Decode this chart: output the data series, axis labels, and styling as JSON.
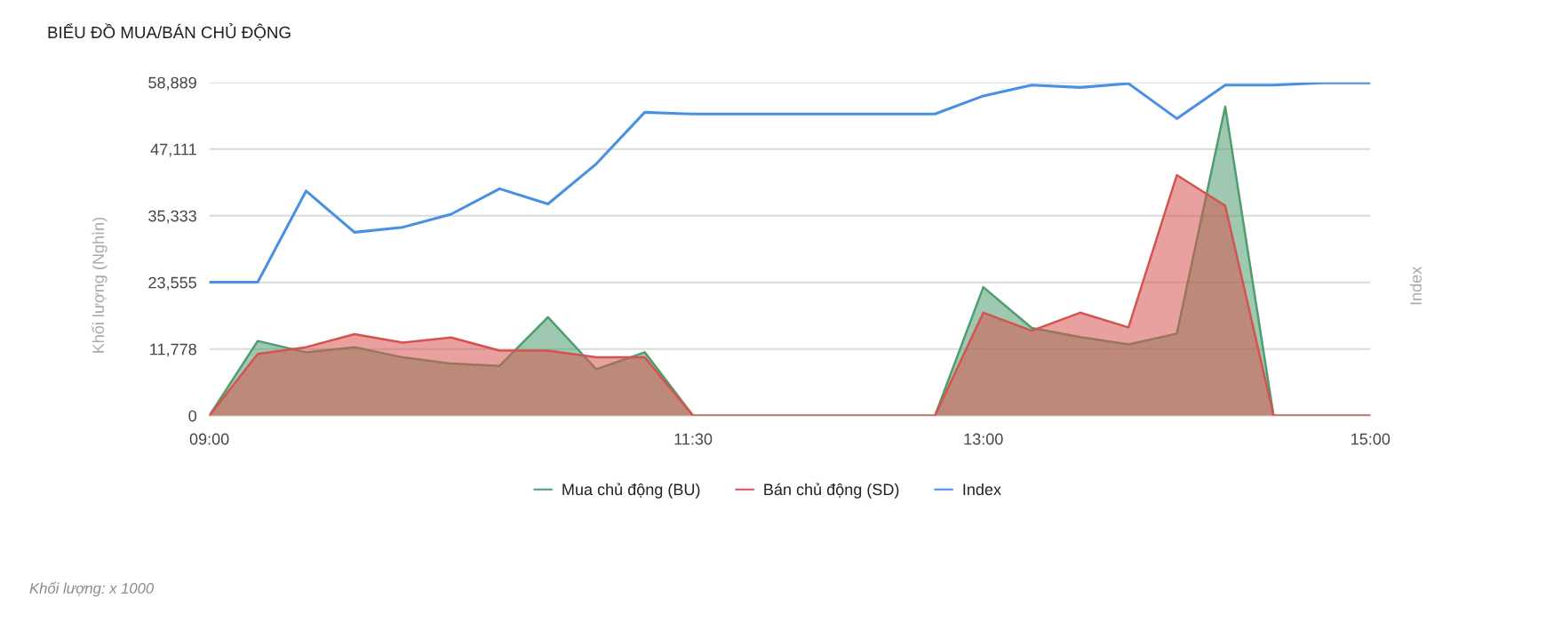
{
  "chart_data": {
    "type": "area",
    "title": "BIỂU ĐỒ MUA/BÁN CHỦ ĐỘNG",
    "ylabel": "Khối lượng (Nghìn)",
    "y2label": "Index",
    "annotations": [
      "Khối lượng: x 1000"
    ],
    "x": [
      9,
      9.25,
      9.5,
      9.75,
      10,
      10.25,
      10.5,
      10.75,
      11,
      11.25,
      11.5,
      11.75,
      12,
      12.25,
      12.5,
      12.75,
      13,
      13.25,
      13.5,
      13.75,
      14,
      14.25,
      14.5,
      14.75,
      15
    ],
    "xlim": [
      9,
      15
    ],
    "xticks": [
      {
        "value": 9,
        "label": "09:00"
      },
      {
        "value": 11.5,
        "label": "11:30"
      },
      {
        "value": 13,
        "label": "13:00"
      },
      {
        "value": 15,
        "label": "15:00"
      }
    ],
    "ylim": [
      0,
      58889
    ],
    "yticks": [
      0,
      {
        "value": 11778,
        "label": "11,778"
      },
      {
        "value": 23555,
        "label": "23,555"
      },
      {
        "value": 35333,
        "label": "35,333"
      },
      {
        "value": 47111,
        "label": "47,111"
      },
      {
        "value": 58889,
        "label": "58,889"
      }
    ],
    "grid": "y",
    "legend": "bottom",
    "series": [
      {
        "name": "Mua chủ động (BU)",
        "color": "#4f9d6f",
        "values": [
          0,
          13200,
          11200,
          12100,
          10300,
          9200,
          8800,
          17400,
          8200,
          11200,
          0,
          0,
          0,
          0,
          0,
          0,
          22700,
          15500,
          13900,
          12600,
          14500,
          54600,
          0,
          0,
          0
        ]
      },
      {
        "name": "Bán chủ động (SD)",
        "color": "#d5534f",
        "values": [
          0,
          10900,
          12100,
          14400,
          12900,
          13800,
          11500,
          11500,
          10300,
          10300,
          0,
          0,
          0,
          0,
          0,
          0,
          18200,
          15000,
          18200,
          15600,
          42500,
          37100,
          0,
          0,
          0
        ]
      },
      {
        "name": "Index",
        "type": "line",
        "color": "#4a90e2",
        "values": [
          23600,
          23600,
          39700,
          32400,
          33300,
          35600,
          40100,
          37400,
          44500,
          53600,
          53300,
          53300,
          53300,
          53300,
          53300,
          53300,
          56500,
          58400,
          58000,
          58700,
          52500,
          58400,
          58400,
          58800,
          58800
        ]
      }
    ]
  }
}
